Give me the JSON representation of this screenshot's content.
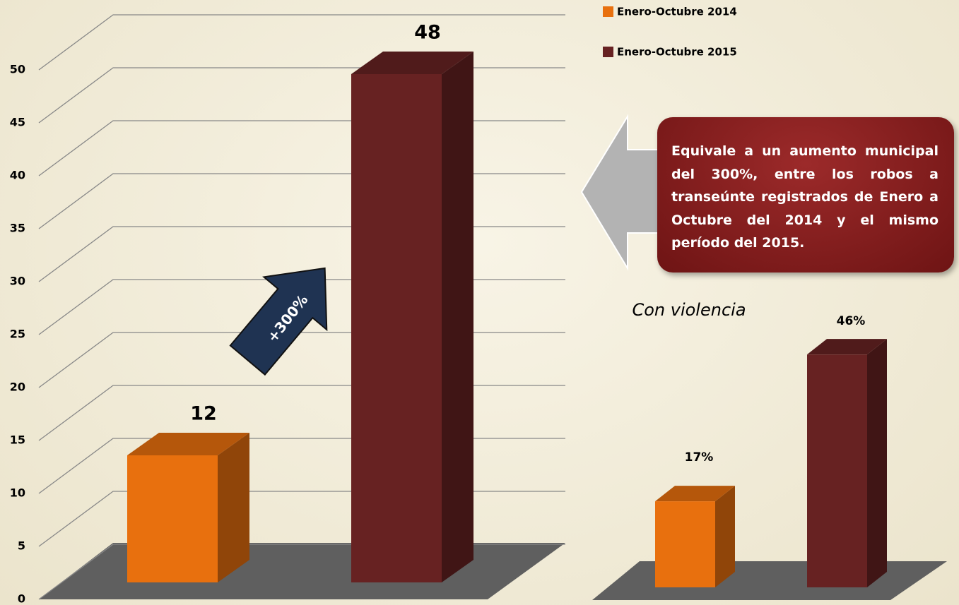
{
  "chart_data": [
    {
      "type": "bar3d",
      "categories": [
        null
      ],
      "series": [
        {
          "name": "Enero-Octubre 2014",
          "color": "#e8700e",
          "values": [
            12
          ]
        },
        {
          "name": "Enero-Octubre 2015",
          "color": "#672222",
          "values": [
            48
          ]
        }
      ],
      "ylim": [
        0,
        50
      ],
      "yticks": [
        0,
        5,
        10,
        15,
        20,
        25,
        30,
        35,
        40,
        45,
        50
      ],
      "grid": true,
      "legend": "top-right",
      "annotations": [
        "+300%",
        "Equivale a un aumento municipal del 300%, entre los robos a transeúnte registrados de Enero a Octubre del 2014 y el mismo período del 2015."
      ]
    },
    {
      "type": "bar3d",
      "title": "Con violencia",
      "categories": [
        null
      ],
      "series": [
        {
          "color": "#e8700e",
          "values": [
            17
          ],
          "value_labels": [
            "17%"
          ]
        },
        {
          "color": "#672222",
          "values": [
            46
          ],
          "value_labels": [
            "46%"
          ]
        }
      ]
    }
  ]
}
